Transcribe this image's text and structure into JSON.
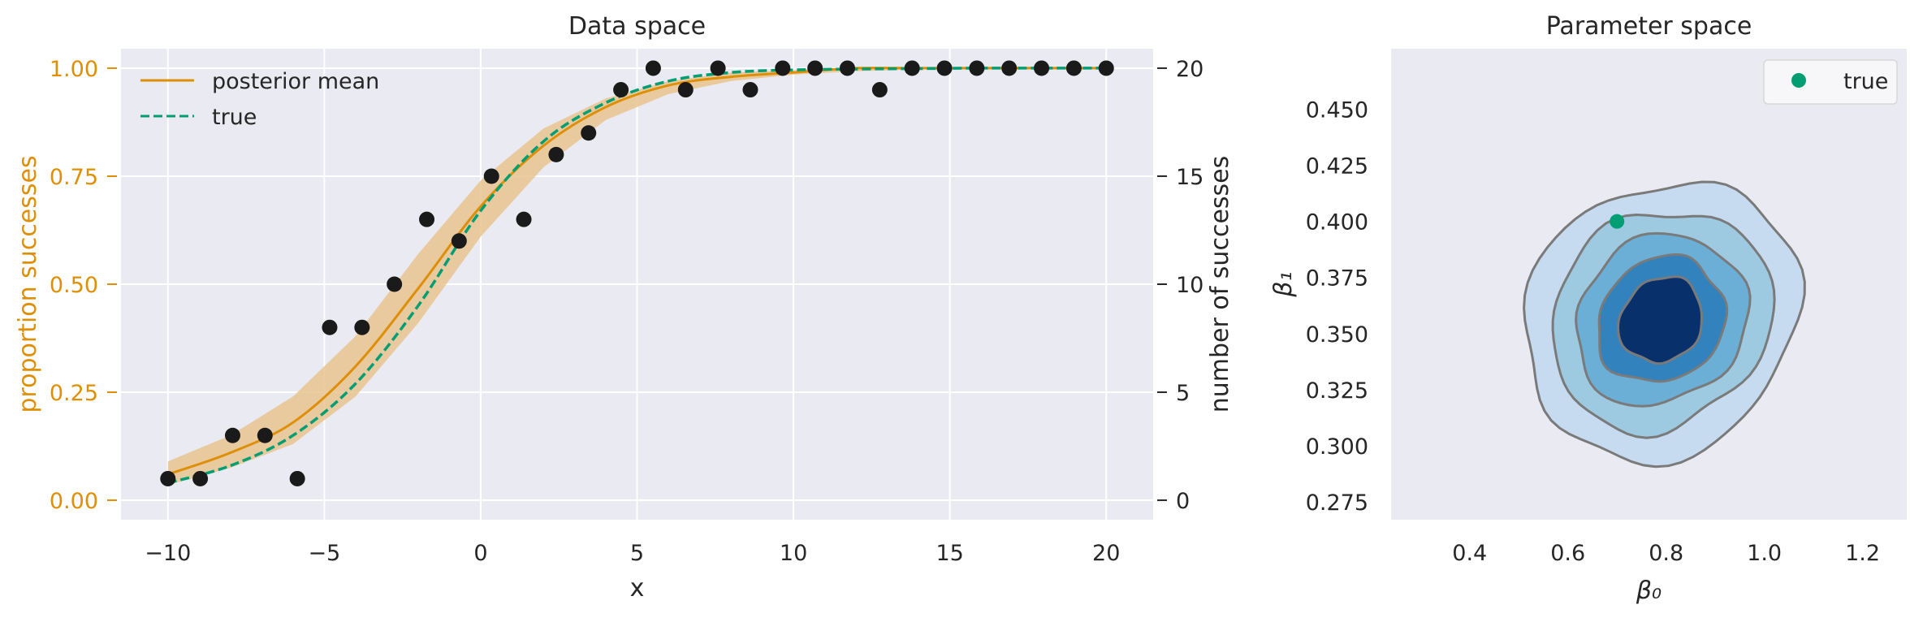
{
  "colors": {
    "axes_bg": "#eaeaf2",
    "grid": "#ffffff",
    "posterior": "#de8f05",
    "band": "#e8c48f",
    "true": "#029e73",
    "points": "#1a1a1a",
    "contour_line": "#7a7a7a",
    "fills": [
      "#c6dbef",
      "#9ecae1",
      "#6baed6",
      "#3182bd",
      "#08306b"
    ]
  },
  "chart_data": [
    {
      "type": "scatter",
      "title": "Data space",
      "xlabel": "x",
      "ylabel": "proportion successes",
      "ylabel_right": "number of successes",
      "xlim": [
        -11.5,
        21.5
      ],
      "ylim": [
        -0.045,
        1.045
      ],
      "ylim_right": [
        -0.9,
        20.9
      ],
      "xticks": [
        -10,
        -5,
        0,
        5,
        10,
        15,
        20
      ],
      "xtick_labels": [
        "−10",
        "−5",
        "0",
        "5",
        "10",
        "15",
        "20"
      ],
      "yticks": [
        0,
        0.25,
        0.5,
        0.75,
        1.0
      ],
      "ytick_labels": [
        "0.00",
        "0.25",
        "0.50",
        "0.75",
        "1.00"
      ],
      "yticks_right": [
        0,
        5,
        10,
        15,
        20
      ],
      "ytick_labels_right": [
        "0",
        "5",
        "10",
        "15",
        "20"
      ],
      "legend": {
        "position": "top-left",
        "entries": [
          "posterior mean",
          "true"
        ]
      },
      "grid": true,
      "points": {
        "x": [
          -10,
          -8.966,
          -7.931,
          -6.897,
          -5.862,
          -4.828,
          -3.793,
          -2.759,
          -1.724,
          -0.69,
          0.345,
          1.379,
          2.414,
          3.448,
          4.483,
          5.517,
          6.552,
          7.586,
          8.621,
          9.655,
          10.69,
          11.724,
          12.759,
          13.793,
          14.828,
          15.862,
          16.897,
          17.931,
          18.966,
          20
        ],
        "successes": [
          1,
          1,
          3,
          3,
          1,
          8,
          8,
          10,
          13,
          12,
          15,
          13,
          16,
          17,
          19,
          20,
          19,
          20,
          19,
          20,
          20,
          20,
          19,
          20,
          20,
          20,
          20,
          20,
          20,
          20
        ],
        "proportion": [
          0.05,
          0.05,
          0.15,
          0.15,
          0.05,
          0.4,
          0.4,
          0.5,
          0.65,
          0.6,
          0.75,
          0.65,
          0.8,
          0.85,
          0.95,
          1.0,
          0.95,
          1.0,
          0.95,
          1.0,
          1.0,
          1.0,
          0.95,
          1.0,
          1.0,
          1.0,
          1.0,
          1.0,
          1.0,
          1.0
        ]
      },
      "series": [
        {
          "name": "posterior mean",
          "x": [
            -10,
            -8,
            -6,
            -4,
            -2,
            0,
            2,
            4,
            6,
            8,
            10,
            12,
            14,
            16,
            18,
            20
          ],
          "y": [
            0.06,
            0.11,
            0.18,
            0.31,
            0.49,
            0.68,
            0.82,
            0.91,
            0.96,
            0.98,
            0.99,
            1.0,
            1.0,
            1.0,
            1.0,
            1.0
          ],
          "band_lower": [
            0.035,
            0.075,
            0.13,
            0.24,
            0.41,
            0.61,
            0.77,
            0.88,
            0.94,
            0.97,
            0.985,
            0.993,
            0.997,
            0.998,
            0.999,
            1.0
          ],
          "band_upper": [
            0.09,
            0.15,
            0.24,
            0.38,
            0.57,
            0.74,
            0.86,
            0.93,
            0.97,
            0.99,
            0.995,
            1.0,
            1.0,
            1.0,
            1.0,
            1.0
          ]
        },
        {
          "name": "true",
          "x": [
            -10,
            -8,
            -6,
            -4,
            -2,
            0,
            2,
            4,
            6,
            8,
            10,
            12,
            14,
            16,
            18,
            20
          ],
          "y": [
            0.04,
            0.08,
            0.15,
            0.27,
            0.45,
            0.67,
            0.83,
            0.92,
            0.97,
            0.99,
            0.996,
            0.998,
            0.999,
            1.0,
            1.0,
            1.0
          ]
        }
      ]
    },
    {
      "type": "contour",
      "title": "Parameter space",
      "xlabel": "β₀",
      "ylabel": "β₁",
      "xlim": [
        0.24,
        1.29
      ],
      "ylim": [
        0.267,
        0.477
      ],
      "xticks": [
        0.4,
        0.6,
        0.8,
        1.0,
        1.2
      ],
      "xtick_labels": [
        "0.4",
        "0.6",
        "0.8",
        "1.0",
        "1.2"
      ],
      "yticks": [
        0.275,
        0.3,
        0.325,
        0.35,
        0.375,
        0.4,
        0.425,
        0.45
      ],
      "ytick_labels": [
        "0.275",
        "0.300",
        "0.325",
        "0.350",
        "0.375",
        "0.400",
        "0.425",
        "0.450"
      ],
      "legend": {
        "position": "top-right",
        "entries": [
          "true"
        ]
      },
      "grid": false,
      "true_point": {
        "x": 0.7,
        "y": 0.4
      },
      "posterior_center": {
        "x": 0.79,
        "y": 0.356
      },
      "contour_levels": [
        {
          "rx": 0.28,
          "ry": 0.062
        },
        {
          "rx": 0.225,
          "ry": 0.049
        },
        {
          "rx": 0.175,
          "ry": 0.038
        },
        {
          "rx": 0.13,
          "ry": 0.028
        },
        {
          "rx": 0.085,
          "ry": 0.019
        }
      ]
    }
  ]
}
